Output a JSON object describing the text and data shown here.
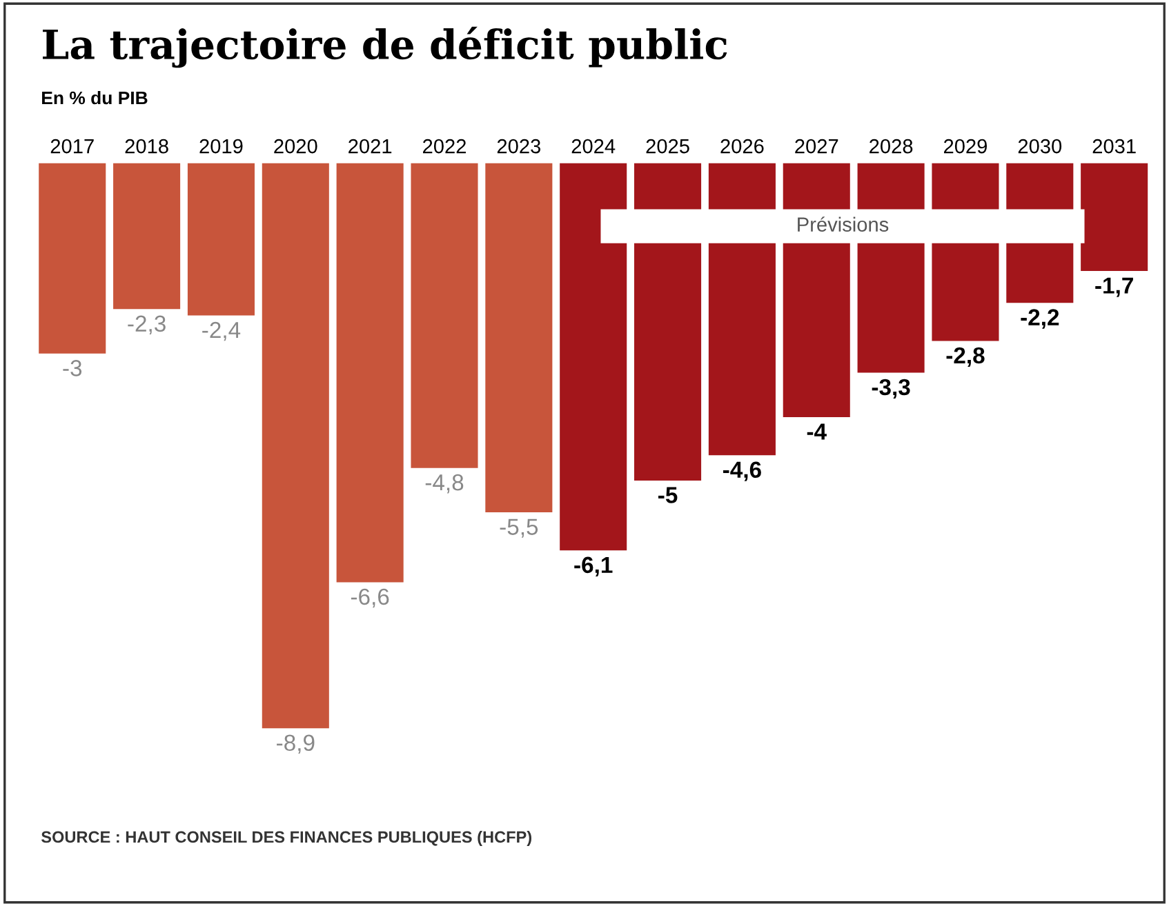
{
  "chart_data": {
    "type": "bar",
    "title": "La trajectoire de déficit public",
    "subtitle": "En % du PIB",
    "categories": [
      "2017",
      "2018",
      "2019",
      "2020",
      "2021",
      "2022",
      "2023",
      "2024",
      "2025",
      "2026",
      "2027",
      "2028",
      "2029",
      "2030",
      "2031"
    ],
    "series": [
      {
        "color": "#c8553b",
        "values": [
          -3,
          -2.3,
          -2.4,
          -8.9,
          -6.6,
          -4.8,
          -5.5,
          null,
          null,
          null,
          null,
          null,
          null,
          null,
          null
        ],
        "value_labels": [
          "-3",
          "-2,3",
          "-2,4",
          "-8,9",
          "-6,6",
          "-4,8",
          "-5,5",
          null,
          null,
          null,
          null,
          null,
          null,
          null,
          null
        ]
      },
      {
        "color": "#a3161b",
        "values": [
          null,
          null,
          null,
          null,
          null,
          null,
          null,
          -6.1,
          -5,
          -4.6,
          -4,
          -3.3,
          -2.8,
          -2.2,
          -1.7
        ],
        "value_labels": [
          null,
          null,
          null,
          null,
          null,
          null,
          null,
          "-6,1",
          "-5",
          "-4,6",
          "-4",
          "-3,3",
          "-2,8",
          "-2,2",
          "-1,7"
        ]
      }
    ],
    "annotations": [
      "Prévisions",
      "SOURCE : HAUT CONSEIL DES FINANCES PUBLIQUES (HCFP)"
    ],
    "grid": false,
    "legend": false
  }
}
